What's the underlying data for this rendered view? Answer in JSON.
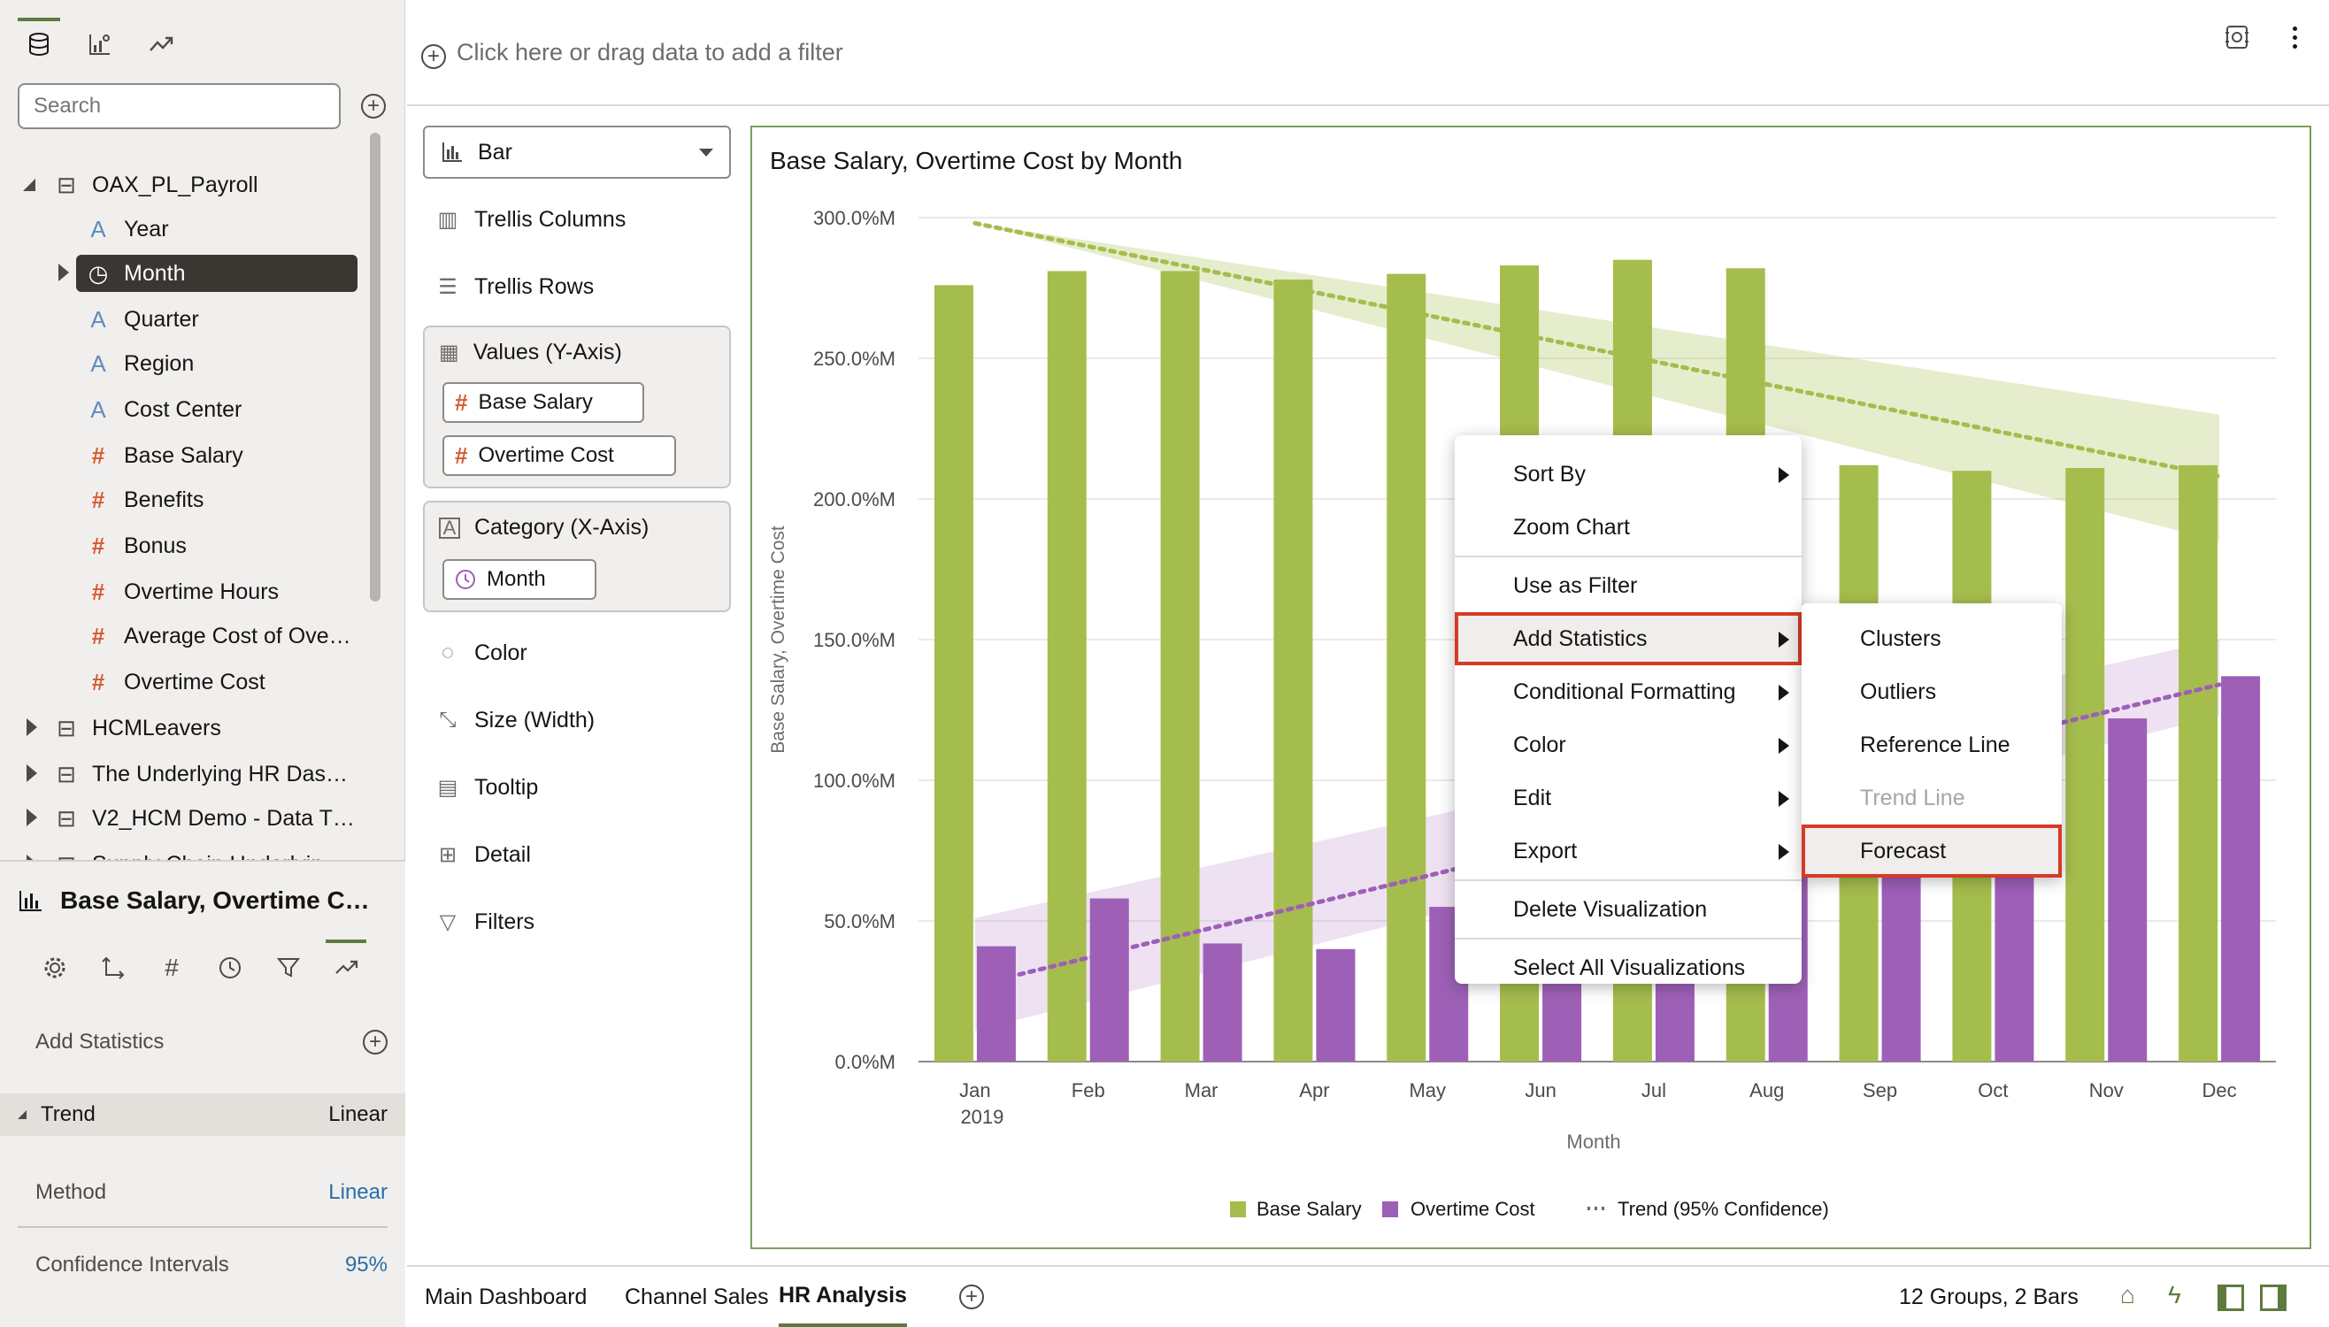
{
  "data_panel": {
    "search_placeholder": "Search",
    "tree": [
      {
        "label": "OAX_PL_Payroll",
        "kind": "dataset",
        "expanded": true
      },
      {
        "label": "Year",
        "kind": "attribute"
      },
      {
        "label": "Month",
        "kind": "time",
        "selected": true
      },
      {
        "label": "Quarter",
        "kind": "attribute"
      },
      {
        "label": "Region",
        "kind": "attribute"
      },
      {
        "label": "Cost Center",
        "kind": "attribute"
      },
      {
        "label": "Base Salary",
        "kind": "measure"
      },
      {
        "label": "Benefits",
        "kind": "measure"
      },
      {
        "label": "Bonus",
        "kind": "measure"
      },
      {
        "label": "Overtime Hours",
        "kind": "measure"
      },
      {
        "label": "Average Cost of Ove…",
        "kind": "measure"
      },
      {
        "label": "Overtime Cost",
        "kind": "measure"
      },
      {
        "label": "HCMLeavers",
        "kind": "dataset"
      },
      {
        "label": "The Underlying HR Das…",
        "kind": "dataset"
      },
      {
        "label": "V2_HCM Demo - Data T…",
        "kind": "dataset"
      },
      {
        "label": "Supply Chain Underlyin…",
        "kind": "dataset"
      }
    ]
  },
  "properties": {
    "title": "Base Salary, Overtime C…",
    "add_statistics": "Add Statistics",
    "trend_label": "Trend",
    "trend_value": "Linear",
    "method_label": "Method",
    "method_value": "Linear",
    "ci_label": "Confidence Intervals",
    "ci_value": "95%"
  },
  "filter_bar": {
    "placeholder": "Click here or drag data to add a filter"
  },
  "grammar": {
    "viz_type": "Bar",
    "trellis_columns": "Trellis Columns",
    "trellis_rows": "Trellis Rows",
    "values_label": "Values (Y-Axis)",
    "values_pills": [
      "Base Salary",
      "Overtime Cost"
    ],
    "category_label": "Category (X-Axis)",
    "category_pill": "Month",
    "color": "Color",
    "size": "Size (Width)",
    "tooltip": "Tooltip",
    "detail": "Detail",
    "filters": "Filters"
  },
  "chart_data": {
    "type": "bar",
    "title": "Base Salary, Overtime Cost by Month",
    "xlabel": "Month",
    "ylabel": "Base Salary, Overtime Cost",
    "categories": [
      "Jan",
      "Feb",
      "Mar",
      "Apr",
      "May",
      "Jun",
      "Jul",
      "Aug",
      "Sep",
      "Oct",
      "Nov",
      "Dec"
    ],
    "first_category_sublabel": "2019",
    "yticks": [
      "0.0%M",
      "50.0%M",
      "100.0%M",
      "150.0%M",
      "200.0%M",
      "250.0%M",
      "300.0%M"
    ],
    "ylim": [
      0,
      300
    ],
    "series": [
      {
        "name": "Base Salary",
        "color": "#a5bd4d",
        "values": [
          276,
          281,
          281,
          278,
          280,
          283,
          285,
          282,
          212,
          210,
          211,
          212
        ]
      },
      {
        "name": "Overtime Cost",
        "color": "#9e60b7",
        "values": [
          41,
          58,
          42,
          40,
          55,
          70,
          85,
          95,
          110,
          115,
          122,
          137
        ]
      }
    ],
    "trend": {
      "label": "Trend (95% Confidence)",
      "base_salary_line": [
        298,
        208
      ],
      "base_salary_band_low": [
        298,
        185
      ],
      "base_salary_band_high": [
        298,
        230
      ],
      "overtime_line": [
        31,
        134
      ],
      "overtime_band_low": [
        11,
        123
      ],
      "overtime_band_high": [
        51,
        150
      ]
    },
    "legend_position": "bottom",
    "grid": true
  },
  "context_menu": {
    "items": [
      {
        "label": "Sort By",
        "submenu": true
      },
      {
        "label": "Zoom Chart",
        "submenu": false
      },
      {
        "label": "Use as Filter",
        "submenu": false
      },
      {
        "label": "Add Statistics",
        "submenu": true,
        "highlighted": true
      },
      {
        "label": "Conditional Formatting",
        "submenu": true
      },
      {
        "label": "Color",
        "submenu": true
      },
      {
        "label": "Edit",
        "submenu": true
      },
      {
        "label": "Export",
        "submenu": true
      },
      {
        "label": "Delete Visualization",
        "submenu": false
      },
      {
        "label": "Select All Visualizations",
        "submenu": false
      }
    ],
    "submenu": [
      {
        "label": "Clusters",
        "enabled": true
      },
      {
        "label": "Outliers",
        "enabled": true
      },
      {
        "label": "Reference Line",
        "enabled": true
      },
      {
        "label": "Trend Line",
        "enabled": false
      },
      {
        "label": "Forecast",
        "enabled": true,
        "highlighted": true
      }
    ]
  },
  "bottom_bar": {
    "tabs": [
      "Main Dashboard",
      "Channel Sales",
      "HR Analysis"
    ],
    "active_tab": "HR Analysis",
    "status": "12 Groups, 2 Bars"
  },
  "colors": {
    "accent": "#5d7b3e",
    "bar1": "#a5bd4d",
    "bar2": "#9e60b7",
    "highlight": "#d63b25"
  }
}
